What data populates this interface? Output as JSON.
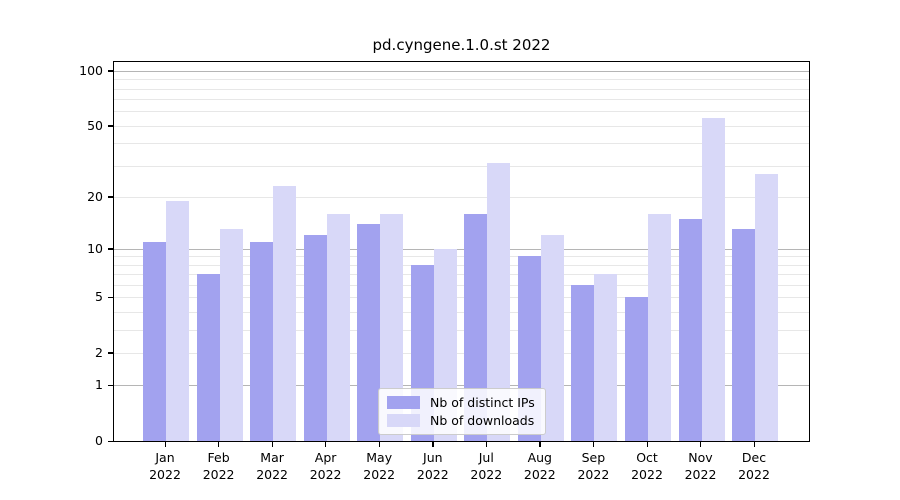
{
  "figure": {
    "title": "pd.cyngene.1.0.st 2022"
  },
  "legend": {
    "items": [
      {
        "label": "Nb of distinct IPs",
        "color": "#a2a2ef"
      },
      {
        "label": "Nb of downloads",
        "color": "#d8d8f8"
      }
    ]
  },
  "axes": {
    "y_tick_labels": [
      "0",
      "1",
      "2",
      "5",
      "10",
      "20",
      "50",
      "100"
    ],
    "x_months": [
      "Jan",
      "Feb",
      "Mar",
      "Apr",
      "May",
      "Jun",
      "Jul",
      "Aug",
      "Sep",
      "Oct",
      "Nov",
      "Dec"
    ],
    "x_year": "2022"
  },
  "chart_data": {
    "type": "bar",
    "title": "pd.cyngene.1.0.st 2022",
    "categories": [
      "Jan 2022",
      "Feb 2022",
      "Mar 2022",
      "Apr 2022",
      "May 2022",
      "Jun 2022",
      "Jul 2022",
      "Aug 2022",
      "Sep 2022",
      "Oct 2022",
      "Nov 2022",
      "Dec 2022"
    ],
    "series": [
      {
        "name": "Nb of distinct IPs",
        "color": "#a2a2ef",
        "values": [
          11,
          7,
          11,
          12,
          14,
          8,
          16,
          9,
          6,
          5,
          15,
          13
        ]
      },
      {
        "name": "Nb of downloads",
        "color": "#d8d8f8",
        "values": [
          19,
          13,
          23,
          16,
          16,
          10,
          31,
          12,
          7,
          16,
          55,
          27
        ]
      }
    ],
    "y_scale": "log1p",
    "y_ticks": [
      0,
      1,
      2,
      5,
      10,
      20,
      50,
      100
    ],
    "y_minor_gridlines": [
      2,
      3,
      4,
      5,
      6,
      7,
      8,
      9,
      20,
      30,
      40,
      50,
      60,
      70,
      80,
      90
    ],
    "y_major_gridlines": [
      1,
      10,
      100
    ],
    "ylim": [
      0,
      110
    ],
    "grid": true,
    "legend_position": "lower center inside",
    "bar_layout": "grouped pairs, distinct IPs left / downloads right"
  }
}
